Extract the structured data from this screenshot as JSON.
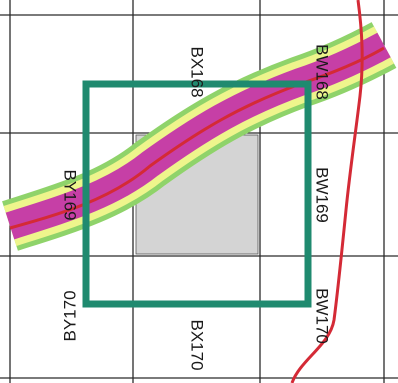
{
  "map": {
    "colors": {
      "grid": "#2b2b2b",
      "frame": "#1f8a6f",
      "shaded_cell": "#d4d4d4",
      "band_outer": "#eef58c",
      "band_inner": "#c63fa6",
      "band_edge": "#8fd36a",
      "road": "#d42a36"
    },
    "grid_labels": [
      {
        "id": "bx168",
        "text": "BX168"
      },
      {
        "id": "bw168",
        "text": "BW168"
      },
      {
        "id": "by169",
        "text": "BY169"
      },
      {
        "id": "bw169",
        "text": "BW169"
      },
      {
        "id": "by170",
        "text": "BY170"
      },
      {
        "id": "bx170",
        "text": "BX170"
      },
      {
        "id": "bw170",
        "text": "BW170"
      }
    ]
  }
}
